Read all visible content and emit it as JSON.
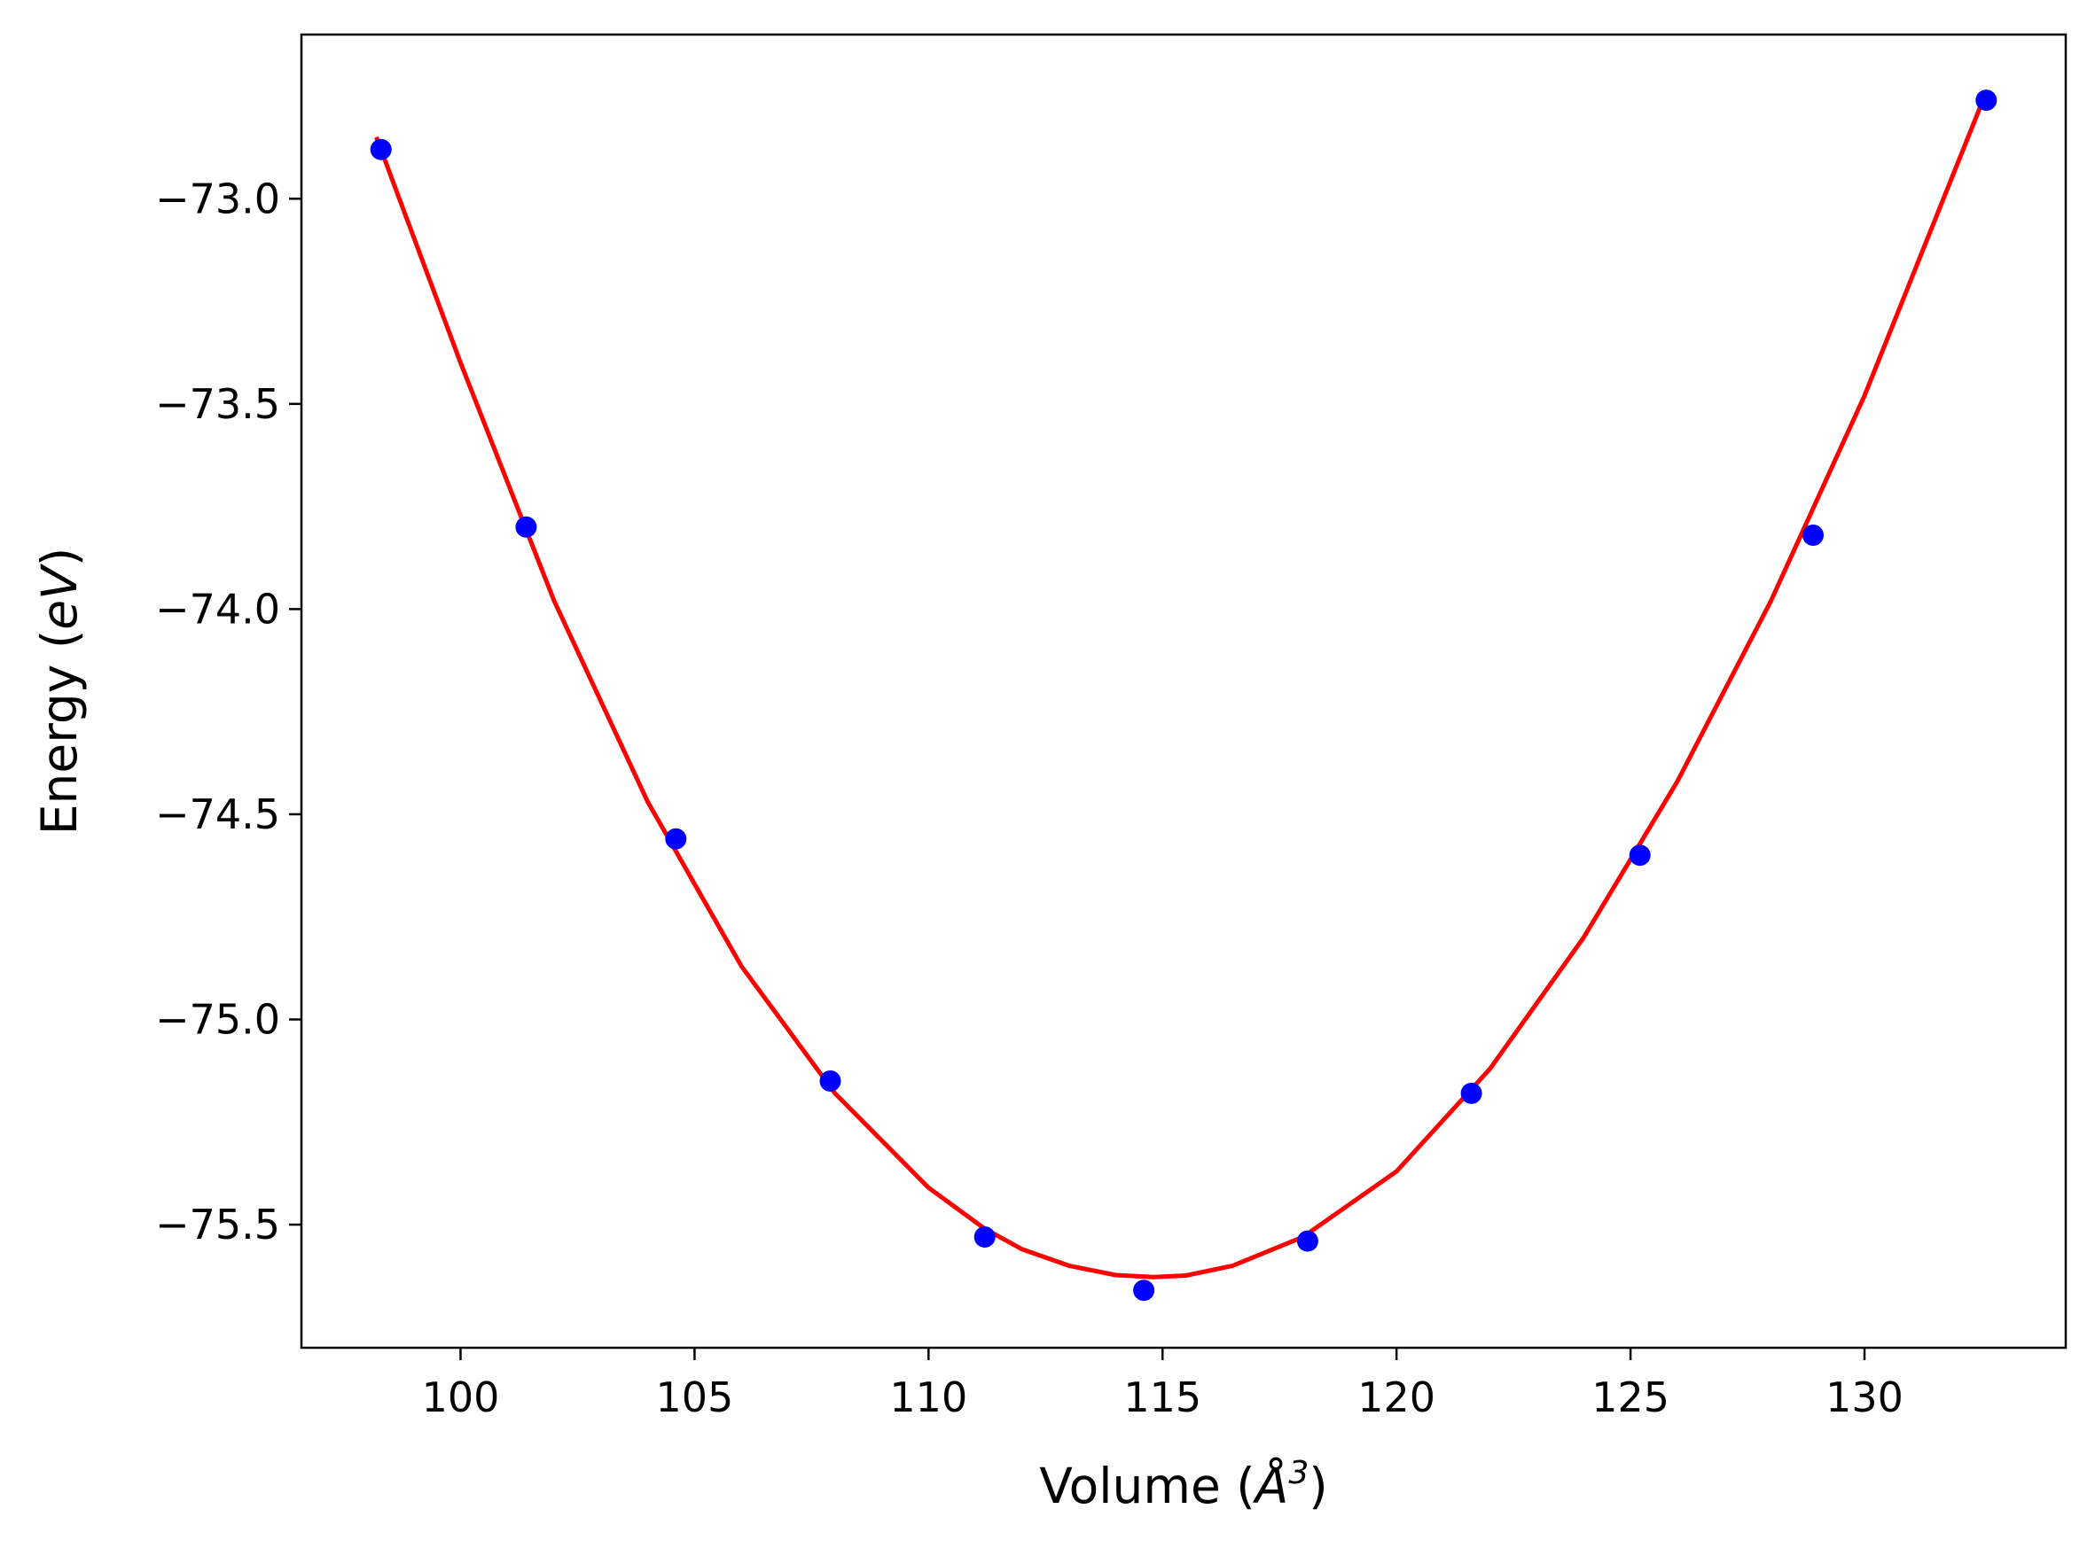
{
  "chart_data": {
    "type": "scatter",
    "xlabel": "Volume (Å³)",
    "ylabel": "Energy (eV)",
    "xlabel_parts": [
      "Volume (",
      "Å",
      "3",
      ")"
    ],
    "ylabel_parts": [
      "Energy (",
      "eV",
      ")"
    ],
    "xlim": [
      96.6,
      134.3
    ],
    "ylim": [
      -75.8,
      -72.6
    ],
    "xticks": [
      100,
      105,
      110,
      115,
      120,
      125,
      130
    ],
    "xtick_labels": [
      "100",
      "105",
      "110",
      "115",
      "120",
      "125",
      "130"
    ],
    "yticks": [
      -73.0,
      -73.5,
      -74.0,
      -74.5,
      -75.0,
      -75.5
    ],
    "ytick_labels": [
      "−73.0",
      "−73.5",
      "−74.0",
      "−74.5",
      "−75.0",
      "−75.5"
    ],
    "grid": false,
    "series": [
      {
        "kind": "points",
        "color": "#0000ff",
        "x": [
          98.3,
          101.4,
          104.6,
          107.9,
          111.2,
          114.6,
          118.1,
          121.6,
          125.2,
          128.9,
          132.6
        ],
        "y": [
          -72.88,
          -73.8,
          -74.56,
          -75.15,
          -75.53,
          -75.66,
          -75.54,
          -75.18,
          -74.6,
          -73.82,
          -72.76
        ]
      },
      {
        "kind": "fit-curve",
        "color": "#ff0000",
        "x": [
          98.2,
          100.0,
          102.0,
          104.0,
          106.0,
          108.0,
          110.0,
          111.2,
          112.0,
          113.0,
          114.0,
          114.8,
          115.5,
          116.5,
          118.0,
          120.0,
          122.0,
          124.0,
          126.0,
          128.0,
          130.0,
          132.6
        ],
        "y": [
          -72.85,
          -73.4,
          -73.98,
          -74.47,
          -74.87,
          -75.18,
          -75.41,
          -75.51,
          -75.56,
          -75.6,
          -75.623,
          -75.628,
          -75.624,
          -75.6,
          -75.53,
          -75.37,
          -75.12,
          -74.8,
          -74.42,
          -73.98,
          -73.48,
          -72.74
        ]
      }
    ]
  }
}
